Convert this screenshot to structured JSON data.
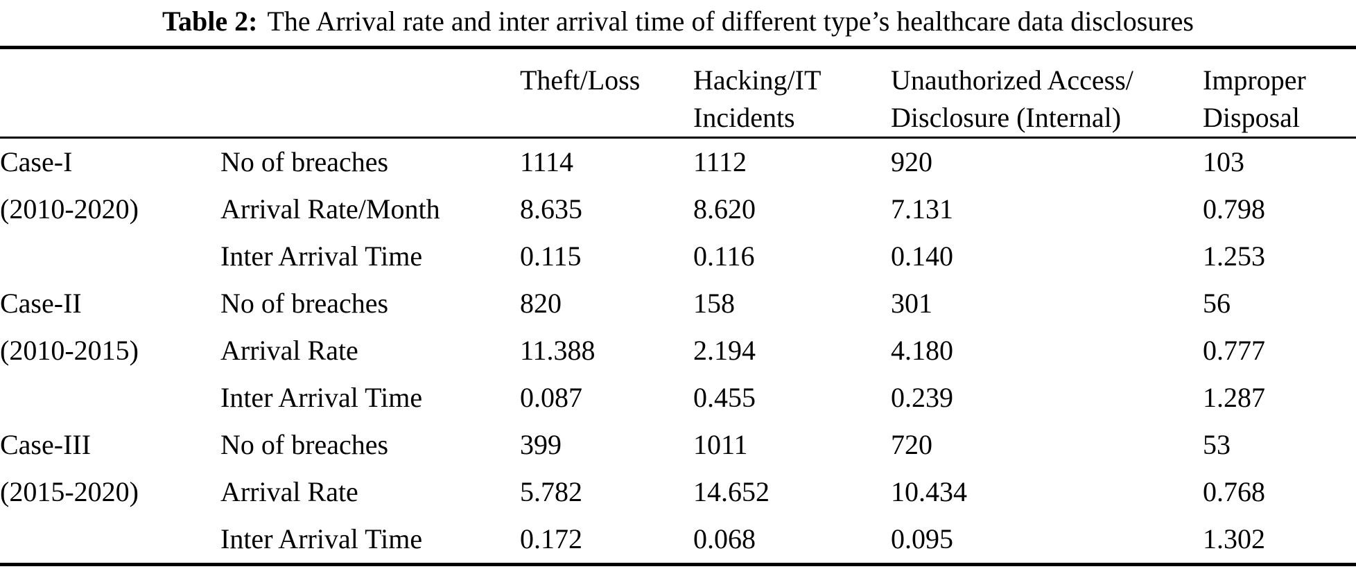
{
  "caption": {
    "label": "Table 2:",
    "text": "The Arrival rate and inter arrival time of different type’s healthcare data disclosures"
  },
  "table": {
    "headers": [
      {
        "line1": "Theft/Loss",
        "line2": ""
      },
      {
        "line1": "Hacking/IT",
        "line2": "Incidents"
      },
      {
        "line1": "Unauthorized Access/",
        "line2": "Disclosure (Internal)"
      },
      {
        "line1": "Improper",
        "line2": "Disposal"
      }
    ],
    "groups": [
      {
        "case": "Case-I",
        "period": "(2010-2020)",
        "rows": [
          {
            "metric": "No of breaches",
            "values": [
              "1114",
              "1112",
              "920",
              "103"
            ]
          },
          {
            "metric": "Arrival Rate/Month",
            "values": [
              "8.635",
              "8.620",
              "7.131",
              "0.798"
            ]
          },
          {
            "metric": "Inter Arrival Time",
            "values": [
              "0.115",
              "0.116",
              "0.140",
              "1.253"
            ]
          }
        ]
      },
      {
        "case": "Case-II",
        "period": "(2010-2015)",
        "rows": [
          {
            "metric": "No of breaches",
            "values": [
              "820",
              "158",
              "301",
              "56"
            ]
          },
          {
            "metric": "Arrival Rate",
            "values": [
              "11.388",
              "2.194",
              "4.180",
              "0.777"
            ]
          },
          {
            "metric": "Inter Arrival Time",
            "values": [
              "0.087",
              "0.455",
              "0.239",
              "1.287"
            ]
          }
        ]
      },
      {
        "case": "Case-III",
        "period": "(2015-2020)",
        "rows": [
          {
            "metric": "No of breaches",
            "values": [
              "399",
              "1011",
              "720",
              "53"
            ]
          },
          {
            "metric": "Arrival Rate",
            "values": [
              "5.782",
              "14.652",
              "10.434",
              "0.768"
            ]
          },
          {
            "metric": "Inter Arrival Time",
            "values": [
              "0.172",
              "0.068",
              "0.095",
              "1.302"
            ]
          }
        ]
      }
    ]
  }
}
